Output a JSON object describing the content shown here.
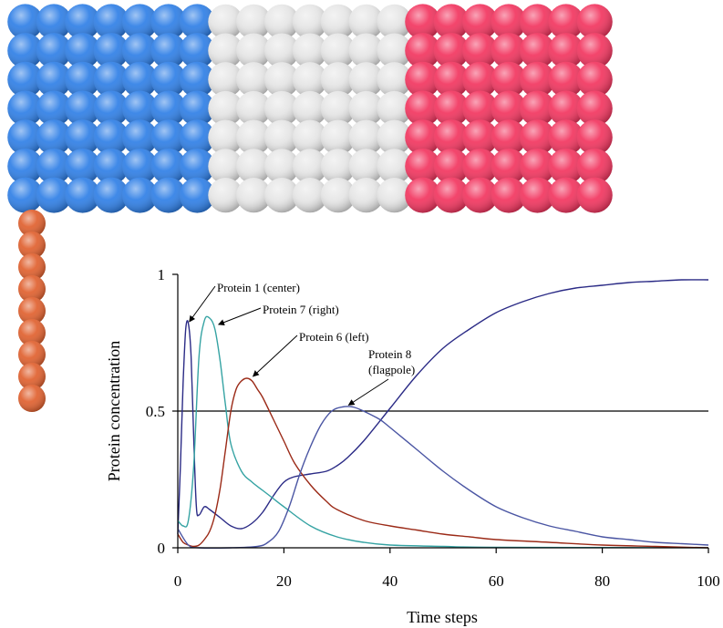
{
  "flag": {
    "bands": [
      {
        "name": "left",
        "color": "#2f7fe6"
      },
      {
        "name": "center",
        "color": "#e6e6e6"
      },
      {
        "name": "right",
        "color": "#f2355f"
      }
    ],
    "flagpole_color": "#e0602e"
  },
  "chart_data": {
    "type": "line",
    "title": "",
    "xlabel": "Time steps",
    "ylabel": "Protein concentration",
    "xlim": [
      0,
      100
    ],
    "ylim": [
      0,
      1
    ],
    "x_ticks": [
      "0",
      "20",
      "40",
      "60",
      "80",
      "100"
    ],
    "y_ticks": [
      "0",
      "0.5",
      "1"
    ],
    "reference_line": 0.5,
    "grid": false,
    "legend": "none",
    "series": [
      {
        "name": "Protein 1 (center)",
        "color": "#2b2b86",
        "x": [
          0,
          0.5,
          1,
          1.5,
          2,
          2.5,
          3,
          3.5,
          4,
          5,
          6,
          8,
          10,
          12,
          14,
          16,
          18,
          20,
          22,
          25,
          28,
          30,
          32,
          35,
          40,
          45,
          50,
          55,
          60,
          65,
          70,
          75,
          80,
          85,
          90,
          95,
          100
        ],
        "y": [
          0.05,
          0.3,
          0.6,
          0.8,
          0.82,
          0.7,
          0.4,
          0.15,
          0.12,
          0.15,
          0.14,
          0.11,
          0.08,
          0.07,
          0.09,
          0.13,
          0.19,
          0.24,
          0.26,
          0.27,
          0.28,
          0.3,
          0.33,
          0.39,
          0.51,
          0.63,
          0.73,
          0.8,
          0.86,
          0.9,
          0.93,
          0.95,
          0.96,
          0.97,
          0.975,
          0.98,
          0.98
        ]
      },
      {
        "name": "Protein 7 (right)",
        "color": "#35a3a3",
        "x": [
          0,
          1,
          2,
          3,
          4,
          5,
          6,
          7,
          8,
          9,
          10,
          12,
          14,
          16,
          18,
          20,
          25,
          30,
          35,
          40,
          50,
          60,
          100
        ],
        "y": [
          0.1,
          0.08,
          0.1,
          0.3,
          0.7,
          0.83,
          0.84,
          0.8,
          0.68,
          0.52,
          0.38,
          0.28,
          0.24,
          0.21,
          0.18,
          0.15,
          0.08,
          0.04,
          0.02,
          0.01,
          0.005,
          0.002,
          0.0
        ]
      },
      {
        "name": "Protein 6 (left)",
        "color": "#9b2a17",
        "x": [
          0,
          1,
          2,
          3,
          4,
          5,
          6,
          7,
          8,
          9,
          10,
          11,
          12,
          13,
          14,
          15,
          16,
          18,
          20,
          22,
          25,
          28,
          30,
          35,
          40,
          45,
          50,
          55,
          60,
          70,
          80,
          90,
          100
        ],
        "y": [
          0.05,
          0.02,
          0.01,
          0.005,
          0.01,
          0.03,
          0.06,
          0.12,
          0.22,
          0.36,
          0.5,
          0.58,
          0.61,
          0.62,
          0.61,
          0.58,
          0.55,
          0.47,
          0.39,
          0.31,
          0.23,
          0.17,
          0.14,
          0.1,
          0.08,
          0.065,
          0.05,
          0.04,
          0.03,
          0.02,
          0.01,
          0.005,
          0.0
        ]
      },
      {
        "name": "Protein 8 (flagpole)",
        "color": "#4a55a3",
        "x": [
          0,
          2,
          4,
          10,
          15,
          17,
          19,
          21,
          23,
          25,
          27,
          29,
          31,
          33,
          35,
          38,
          40,
          45,
          50,
          55,
          60,
          65,
          70,
          75,
          80,
          85,
          90,
          95,
          100
        ],
        "y": [
          0.07,
          0.01,
          0.0,
          0.0,
          0.005,
          0.02,
          0.06,
          0.15,
          0.27,
          0.37,
          0.45,
          0.5,
          0.515,
          0.515,
          0.5,
          0.47,
          0.44,
          0.36,
          0.28,
          0.21,
          0.15,
          0.11,
          0.08,
          0.06,
          0.04,
          0.03,
          0.02,
          0.015,
          0.01
        ]
      }
    ],
    "annotations": [
      {
        "lines": [
          "Protein 1 (center)"
        ],
        "points_to": [
          2,
          0.82
        ]
      },
      {
        "lines": [
          "Protein 7 (right)"
        ],
        "points_to": [
          7.5,
          0.81
        ]
      },
      {
        "lines": [
          "Protein 6 (left)"
        ],
        "points_to": [
          14,
          0.62
        ]
      },
      {
        "lines": [
          "Protein 8",
          "(flagpole)"
        ],
        "points_to": [
          32,
          0.515
        ]
      }
    ]
  }
}
